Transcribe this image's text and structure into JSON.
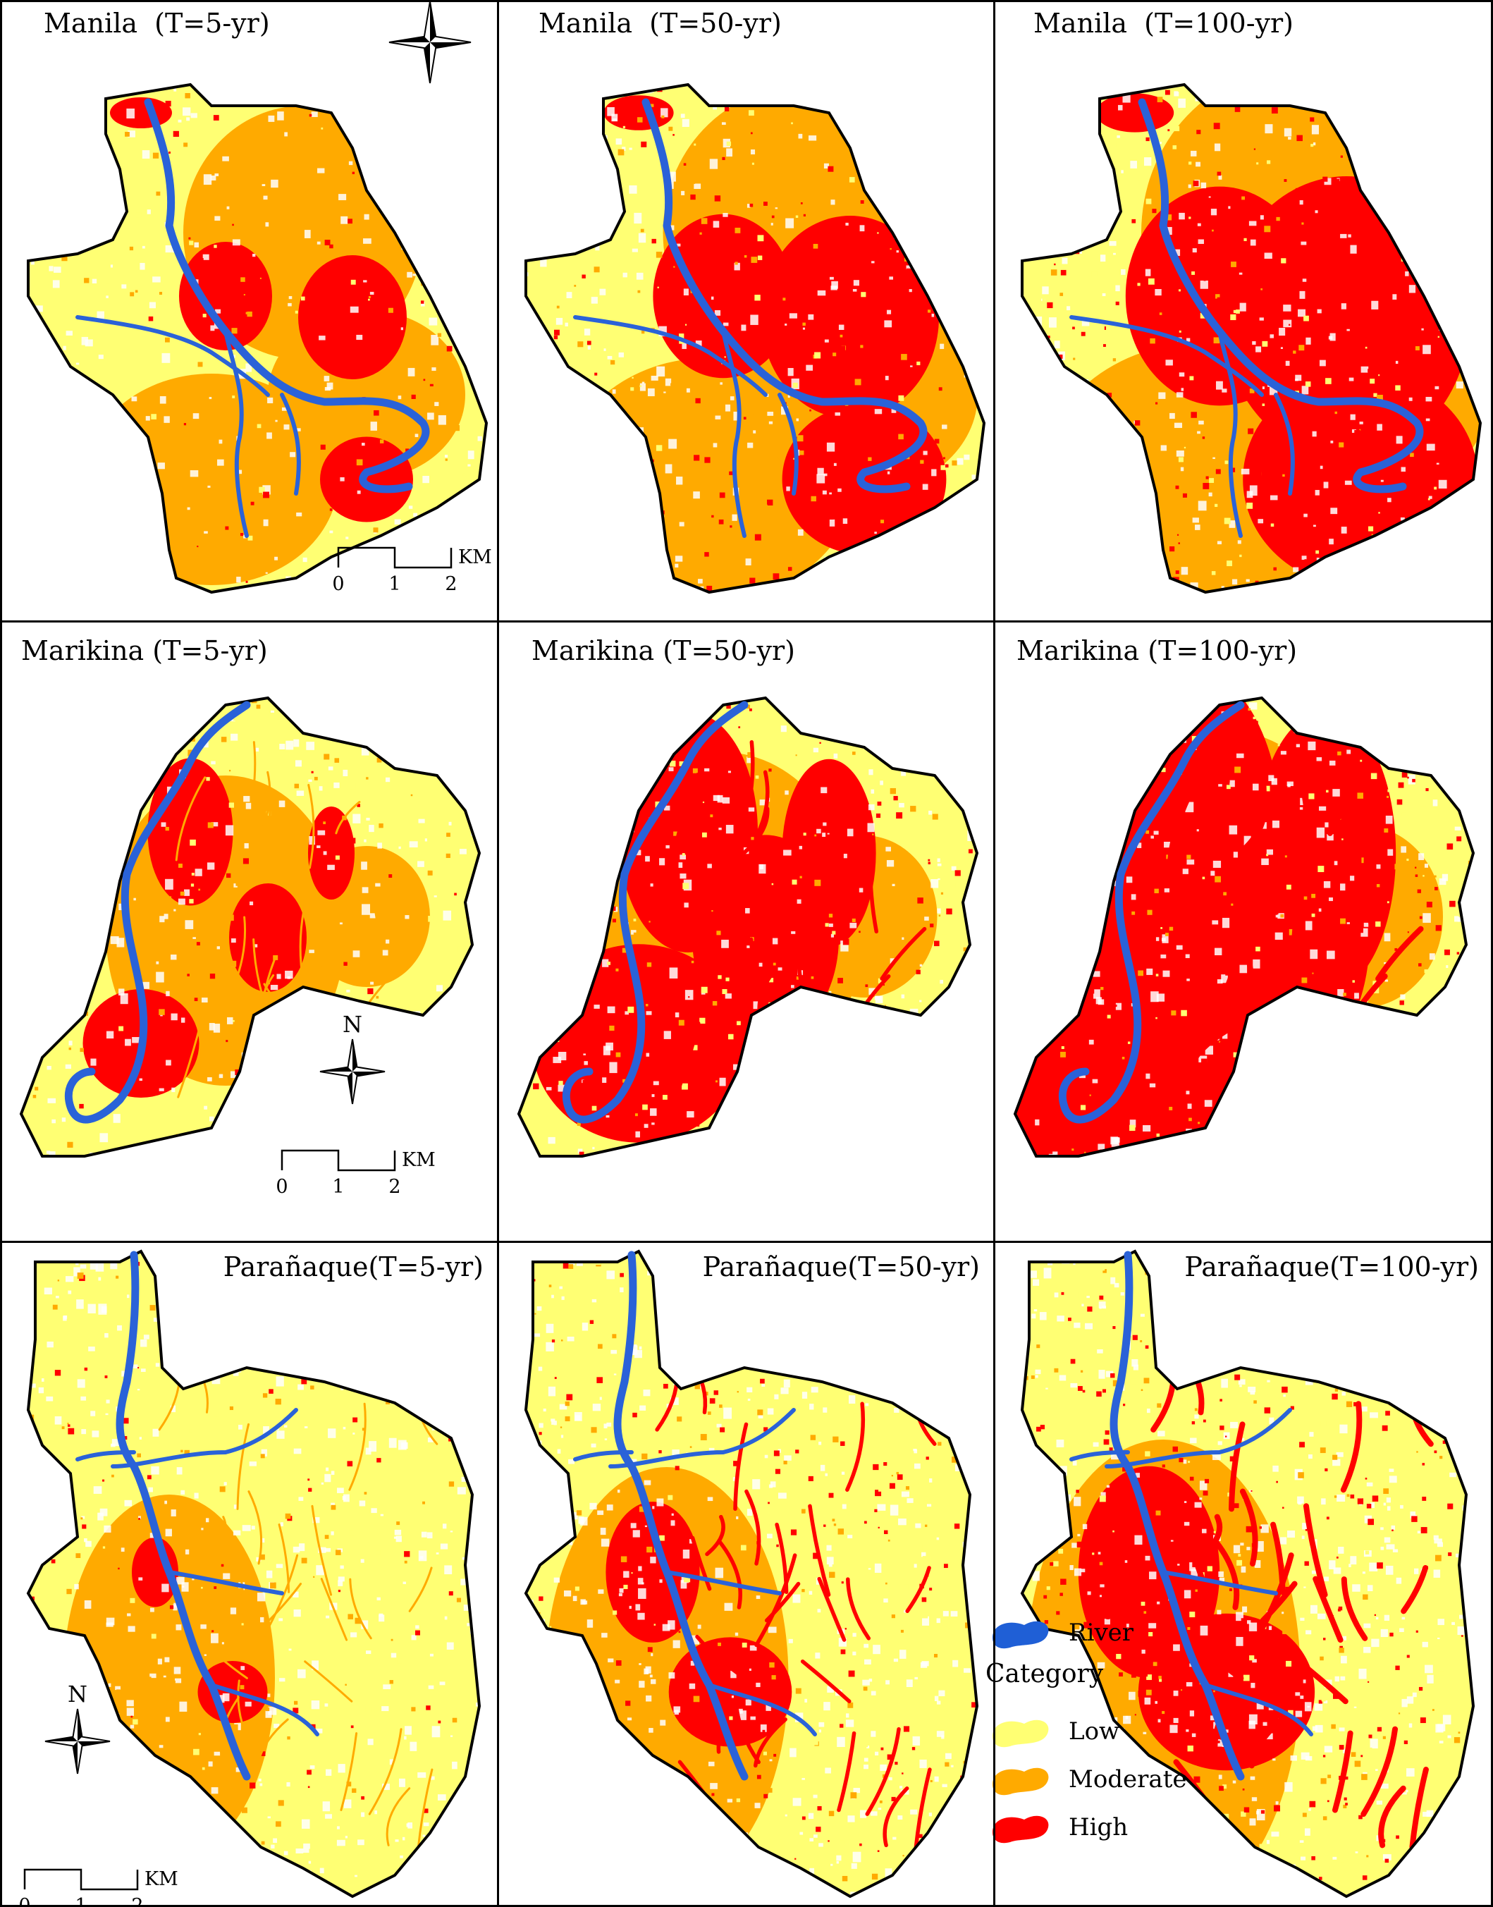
{
  "rows": [
    {
      "city": "Manila",
      "panels": [
        {
          "title": "Manila  (T=5-yr)",
          "return_period": "T=5-yr",
          "severity": 0
        },
        {
          "title": "Manila  (T=50-yr)",
          "return_period": "T=50-yr",
          "severity": 1
        },
        {
          "title": "Manila  (T=100-yr)",
          "return_period": "T=100-yr",
          "severity": 2
        }
      ]
    },
    {
      "city": "Marikina",
      "panels": [
        {
          "title": "Marikina (T=5-yr)",
          "return_period": "T=5-yr",
          "severity": 0
        },
        {
          "title": "Marikina (T=50-yr)",
          "return_period": "T=50-yr",
          "severity": 1
        },
        {
          "title": "Marikina (T=100-yr)",
          "return_period": "T=100-yr",
          "severity": 2
        }
      ]
    },
    {
      "city": "Parañaque",
      "panels": [
        {
          "title": "Parañaque(T=5-yr)",
          "return_period": "T=5-yr",
          "severity": 0
        },
        {
          "title": "Parañaque(T=50-yr)",
          "return_period": "T=50-yr",
          "severity": 1
        },
        {
          "title": "Parañaque(T=100-yr)",
          "return_period": "T=100-yr",
          "severity": 2
        }
      ]
    }
  ],
  "north_arrow": {
    "label": "N",
    "icon": "compass-rose-icon"
  },
  "scale_bar": {
    "ticks": [
      "0",
      "1",
      "2"
    ],
    "unit": "KM"
  },
  "legend": {
    "river_label": "River",
    "category_heading": "Category",
    "categories": [
      {
        "label": "Low",
        "color": "#ffff73"
      },
      {
        "label": "Moderate",
        "color": "#ffaa00"
      },
      {
        "label": "High",
        "color": "#ff0000"
      }
    ],
    "river_color": "#1f5fd6"
  },
  "colors": {
    "low": "#ffff73",
    "moderate": "#ffaa00",
    "high": "#ff0000",
    "river": "#2a62d8",
    "boundary": "#000000"
  }
}
